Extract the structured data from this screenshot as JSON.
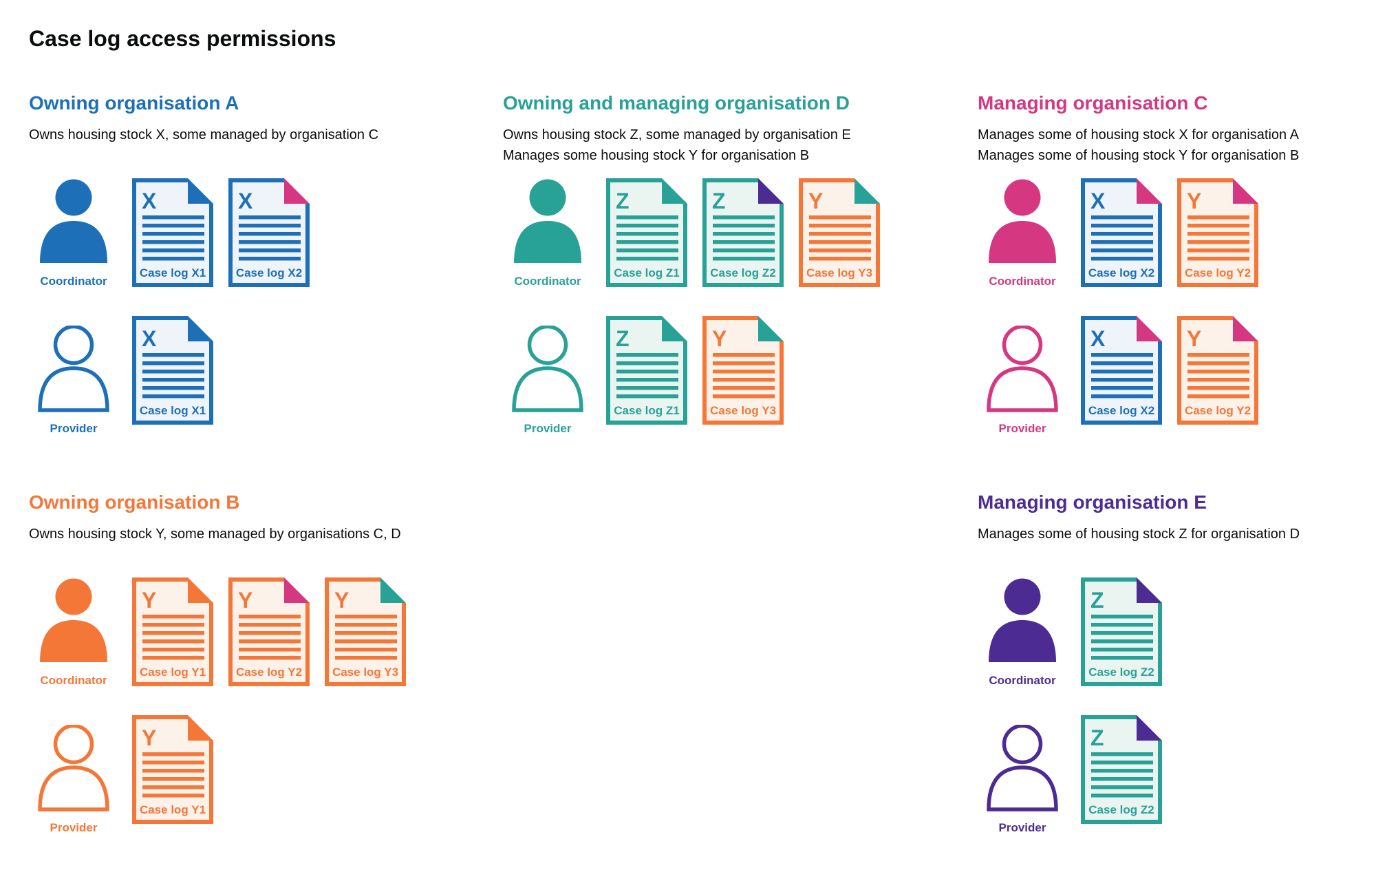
{
  "title": "Case log access permissions",
  "colors": {
    "blue": "#1d70b8",
    "teal": "#28a197",
    "pink": "#d53880",
    "orange": "#f47738",
    "purple": "#4c2c92",
    "text": "#0b0c0c",
    "blue_fill": "#eff4fa",
    "teal_fill": "#eaf5f2",
    "orange_fill": "#fdf2ea"
  },
  "sections": [
    {
      "id": "owning-organisation-a",
      "heading": "Owning organisation A",
      "color": "blue",
      "description": [
        "Owns housing stock X, some managed by organisation C"
      ],
      "rows": [
        {
          "person": {
            "role": "Coordinator",
            "style": "filled"
          },
          "docs": [
            {
              "label": "Case log X1",
              "letter": "X",
              "doc_color": "blue",
              "fold_color": "blue"
            },
            {
              "label": "Case log X2",
              "letter": "X",
              "doc_color": "blue",
              "fold_color": "pink"
            }
          ]
        },
        {
          "person": {
            "role": "Provider",
            "style": "outline"
          },
          "docs": [
            {
              "label": "Case log X1",
              "letter": "X",
              "doc_color": "blue",
              "fold_color": "blue"
            }
          ]
        }
      ]
    },
    {
      "id": "owning-and-managing-organisation-d",
      "heading": "Owning and managing organisation D",
      "color": "teal",
      "description": [
        "Owns housing stock Z, some managed by organisation E",
        "Manages some housing stock Y for organisation B"
      ],
      "rows": [
        {
          "person": {
            "role": "Coordinator",
            "style": "filled"
          },
          "docs": [
            {
              "label": "Case log Z1",
              "letter": "Z",
              "doc_color": "teal",
              "fold_color": "teal"
            },
            {
              "label": "Case log Z2",
              "letter": "Z",
              "doc_color": "teal",
              "fold_color": "purple"
            },
            {
              "label": "Case log Y3",
              "letter": "Y",
              "doc_color": "orange",
              "fold_color": "teal"
            }
          ]
        },
        {
          "person": {
            "role": "Provider",
            "style": "outline"
          },
          "docs": [
            {
              "label": "Case log Z1",
              "letter": "Z",
              "doc_color": "teal",
              "fold_color": "teal"
            },
            {
              "label": "Case log Y3",
              "letter": "Y",
              "doc_color": "orange",
              "fold_color": "teal"
            }
          ]
        }
      ]
    },
    {
      "id": "managing-organisation-c",
      "heading": "Managing organisation C",
      "color": "pink",
      "description": [
        "Manages some of housing stock X for organisation A",
        "Manages some of housing stock Y for organisation B"
      ],
      "rows": [
        {
          "person": {
            "role": "Coordinator",
            "style": "filled"
          },
          "docs": [
            {
              "label": "Case log X2",
              "letter": "X",
              "doc_color": "blue",
              "fold_color": "pink"
            },
            {
              "label": "Case log Y2",
              "letter": "Y",
              "doc_color": "orange",
              "fold_color": "pink"
            }
          ]
        },
        {
          "person": {
            "role": "Provider",
            "style": "outline"
          },
          "docs": [
            {
              "label": "Case log X2",
              "letter": "X",
              "doc_color": "blue",
              "fold_color": "pink"
            },
            {
              "label": "Case log Y2",
              "letter": "Y",
              "doc_color": "orange",
              "fold_color": "pink"
            }
          ]
        }
      ]
    },
    {
      "id": "owning-organisation-b",
      "heading": "Owning organisation B",
      "color": "orange",
      "description": [
        "Owns housing stock Y, some managed by organisations C, D"
      ],
      "rows": [
        {
          "person": {
            "role": "Coordinator",
            "style": "filled"
          },
          "docs": [
            {
              "label": "Case log Y1",
              "letter": "Y",
              "doc_color": "orange",
              "fold_color": "orange"
            },
            {
              "label": "Case log Y2",
              "letter": "Y",
              "doc_color": "orange",
              "fold_color": "pink"
            },
            {
              "label": "Case log Y3",
              "letter": "Y",
              "doc_color": "orange",
              "fold_color": "teal"
            }
          ]
        },
        {
          "person": {
            "role": "Provider",
            "style": "outline"
          },
          "docs": [
            {
              "label": "Case log Y1",
              "letter": "Y",
              "doc_color": "orange",
              "fold_color": "orange"
            }
          ]
        }
      ]
    },
    {
      "id": "managing-organisation-e",
      "heading": "Managing organisation E",
      "color": "purple",
      "description": [
        "Manages some of housing stock Z for organisation D"
      ],
      "rows": [
        {
          "person": {
            "role": "Coordinator",
            "style": "filled"
          },
          "docs": [
            {
              "label": "Case log Z2",
              "letter": "Z",
              "doc_color": "teal",
              "fold_color": "purple"
            }
          ]
        },
        {
          "person": {
            "role": "Provider",
            "style": "outline"
          },
          "docs": [
            {
              "label": "Case log Z2",
              "letter": "Z",
              "doc_color": "teal",
              "fold_color": "purple"
            }
          ]
        }
      ]
    }
  ]
}
